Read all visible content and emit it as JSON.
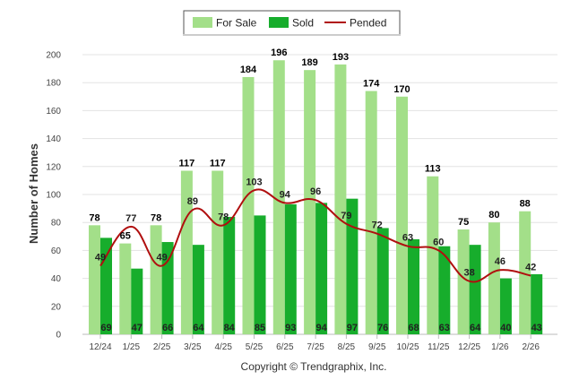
{
  "chart_data": {
    "type": "bar",
    "categories": [
      "12/24",
      "1/25",
      "2/25",
      "3/25",
      "4/25",
      "5/25",
      "6/25",
      "7/25",
      "8/25",
      "9/25",
      "10/25",
      "11/25",
      "12/25",
      "1/26",
      "2/26"
    ],
    "series": [
      {
        "name": "For Sale",
        "kind": "bar",
        "color": "#a3df89",
        "values": [
          78,
          65,
          78,
          117,
          117,
          184,
          196,
          189,
          193,
          174,
          170,
          113,
          75,
          80,
          88
        ]
      },
      {
        "name": "Sold",
        "kind": "bar",
        "color": "#17ad2c",
        "values": [
          69,
          47,
          66,
          64,
          84,
          85,
          93,
          94,
          97,
          76,
          68,
          63,
          64,
          40,
          43
        ]
      },
      {
        "name": "Pended",
        "kind": "line",
        "color": "#b00f0f",
        "values": [
          49,
          77,
          49,
          89,
          78,
          103,
          94,
          96,
          79,
          72,
          63,
          60,
          38,
          46,
          42
        ]
      }
    ],
    "ylabel": "Number of Homes",
    "xlabel": "",
    "ylim": [
      0,
      200
    ],
    "yticks": [
      0,
      20,
      40,
      60,
      80,
      100,
      120,
      140,
      160,
      180,
      200
    ],
    "grid": true,
    "legend": "top-center"
  },
  "footer": {
    "copyright": "Copyright © Trendgraphix, Inc."
  }
}
